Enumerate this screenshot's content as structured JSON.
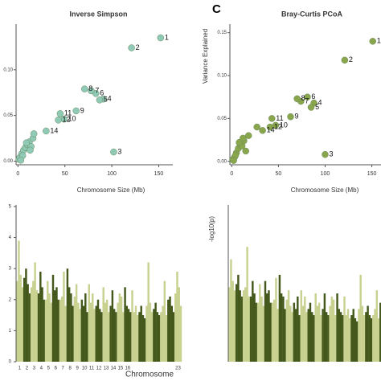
{
  "chart_data": [
    {
      "type": "scatter",
      "title": "Inverse Simpson",
      "x_label": "Chromosome Size (Mb)",
      "color": "#8fcab6",
      "x": [
        152,
        121,
        102,
        91,
        87,
        83,
        78,
        71,
        62,
        45,
        49,
        43,
        30,
        1,
        2,
        4,
        6,
        8,
        10,
        12,
        14,
        16,
        5,
        9,
        13,
        17,
        3
      ],
      "values": [
        0.135,
        0.124,
        0.01,
        0.068,
        0.067,
        0.074,
        0.077,
        0.079,
        0.055,
        0.052,
        0.046,
        0.045,
        0.033,
        0.002,
        0.004,
        0.008,
        0.012,
        0.015,
        0.018,
        0.021,
        0.016,
        0.025,
        0.006,
        0.02,
        0.012,
        0.03,
        0.001
      ],
      "labels": [
        "1",
        "2",
        "3",
        "4",
        "5",
        "6",
        "7",
        "8",
        "9",
        "11",
        "10",
        "12",
        "14",
        null,
        null,
        null,
        null,
        null,
        null,
        null,
        null,
        null,
        null,
        null,
        null,
        null,
        null
      ],
      "xlim": [
        -2,
        165
      ],
      "ylim": [
        -0.004,
        0.15
      ],
      "xticks": [
        0,
        50,
        100,
        150
      ],
      "yticks": [
        {
          "value": 0,
          "label": "0.00"
        },
        {
          "value": 0.05,
          "label": "0.05"
        },
        {
          "value": 0.1,
          "label": "0.10"
        }
      ]
    },
    {
      "type": "scatter",
      "title": "Bray-Curtis  PCoA",
      "panel_label": "C",
      "x_label": "Chromosome Size (Mb)",
      "y_label": "Variance Explained",
      "color": "#8aa64d",
      "x": [
        151,
        121,
        100,
        88,
        85,
        81,
        74,
        70,
        63,
        43,
        47,
        41,
        33,
        27,
        1,
        3,
        5,
        7,
        9,
        11,
        13,
        15,
        4,
        8,
        12,
        18,
        2
      ],
      "values": [
        0.14,
        0.118,
        0.008,
        0.068,
        0.063,
        0.075,
        0.07,
        0.073,
        0.052,
        0.05,
        0.042,
        0.04,
        0.036,
        0.04,
        0.002,
        0.005,
        0.01,
        0.015,
        0.02,
        0.018,
        0.024,
        0.012,
        0.007,
        0.022,
        0.027,
        0.03,
        0.001
      ],
      "labels": [
        "1",
        "2",
        "3",
        "4",
        "5",
        "6",
        "7",
        "8",
        "9",
        "11",
        "10",
        "12",
        "14",
        null,
        null,
        null,
        null,
        null,
        null,
        null,
        null,
        null,
        null,
        null,
        null,
        null,
        null
      ],
      "xlim": [
        -2,
        165
      ],
      "ylim": [
        -0.004,
        0.16
      ],
      "xticks": [
        0,
        50,
        100,
        150
      ],
      "yticks": [
        {
          "value": 0,
          "label": "0.00"
        },
        {
          "value": 0.05,
          "label": "0.05"
        },
        {
          "value": 0.1,
          "label": "0.10"
        },
        {
          "value": 0.15,
          "label": "0.15"
        }
      ]
    },
    {
      "type": "manhattan",
      "x_label": "Chromosome",
      "colors": [
        "#c8d18f",
        "#44581c"
      ],
      "categories": [
        "1",
        "2",
        "3",
        "4",
        "5",
        "6",
        "7",
        "8",
        "9",
        "10",
        "11",
        "12",
        "13",
        "14",
        "15",
        "16",
        null,
        null,
        null,
        null,
        null,
        null,
        "23"
      ],
      "values": [
        [
          2.6,
          3.9,
          2.8,
          2.4
        ],
        [
          2.7,
          3.0,
          2.5,
          2.2
        ],
        [
          2.4,
          2.6,
          3.2,
          2.3
        ],
        [
          2.2,
          2.9,
          2.4,
          2.0
        ],
        [
          2.0,
          2.6,
          2.2,
          1.9
        ],
        [
          2.8,
          2.3,
          2.4,
          2.0
        ],
        [
          2.0,
          2.1,
          2.9,
          1.8
        ],
        [
          3.0,
          2.4,
          2.2,
          1.8
        ],
        [
          2.1,
          2.5,
          1.9,
          1.7
        ],
        [
          2.0,
          1.8,
          2.2,
          1.6
        ],
        [
          2.5,
          1.9,
          2.2,
          1.7
        ],
        [
          1.8,
          2.0,
          1.7,
          1.6
        ],
        [
          2.4,
          1.9,
          2.0,
          1.6
        ],
        [
          1.8,
          2.3,
          1.7,
          1.6
        ],
        [
          1.9,
          2.2,
          2.1,
          1.6
        ],
        [
          2.4,
          1.8,
          1.7,
          1.6
        ],
        [
          2.3,
          1.6,
          1.8,
          1.5
        ],
        [
          1.6,
          1.8,
          1.5,
          1.4
        ],
        [
          1.8,
          3.2,
          1.9,
          1.6
        ],
        [
          1.7,
          1.9,
          1.6,
          1.5
        ],
        [
          1.6,
          1.8,
          2.6,
          1.5
        ],
        [
          2.0,
          2.1,
          1.8,
          1.6
        ],
        [
          2.2,
          2.9,
          2.4,
          1.8
        ]
      ],
      "ylim": [
        0,
        5.05
      ],
      "yticks": [
        0,
        1,
        2,
        3,
        4,
        5
      ]
    },
    {
      "type": "manhattan",
      "y_label": "-log10(p)",
      "colors": [
        "#c8d18f",
        "#44581c"
      ],
      "categories": [
        null,
        null,
        null,
        null,
        null,
        null,
        null,
        null,
        null,
        null,
        null,
        null,
        null,
        null,
        null,
        null,
        null,
        null,
        null,
        null,
        null,
        null,
        null
      ],
      "values": [
        [
          2.4,
          3.3,
          2.6,
          2.3
        ],
        [
          2.5,
          2.8,
          2.3,
          2.1
        ],
        [
          2.3,
          2.4,
          3.7,
          2.1
        ],
        [
          2.1,
          2.6,
          2.2,
          1.9
        ],
        [
          1.9,
          2.5,
          2.1,
          1.8
        ],
        [
          2.6,
          2.2,
          2.3,
          1.9
        ],
        [
          1.9,
          2.0,
          2.7,
          1.7
        ],
        [
          2.8,
          2.2,
          2.1,
          1.7
        ],
        [
          2.0,
          2.3,
          1.8,
          1.6
        ],
        [
          1.9,
          1.7,
          2.1,
          1.5
        ],
        [
          2.3,
          1.8,
          2.1,
          1.6
        ],
        [
          1.7,
          1.9,
          1.6,
          1.5
        ],
        [
          2.2,
          1.8,
          1.9,
          1.5
        ],
        [
          1.7,
          2.2,
          1.6,
          1.5
        ],
        [
          1.8,
          2.1,
          2.0,
          1.5
        ],
        [
          2.2,
          1.7,
          1.6,
          1.5
        ],
        [
          2.1,
          1.5,
          1.7,
          1.4
        ],
        [
          1.5,
          1.7,
          1.4,
          1.3
        ],
        [
          1.7,
          2.8,
          1.8,
          1.5
        ],
        [
          1.6,
          1.8,
          1.5,
          1.4
        ],
        [
          1.5,
          1.7,
          2.3,
          1.4
        ],
        [
          1.9,
          2.0,
          1.7,
          1.5
        ],
        [
          2.1,
          2.6,
          2.2,
          1.7
        ]
      ],
      "ylim": [
        0,
        5.05
      ]
    }
  ]
}
